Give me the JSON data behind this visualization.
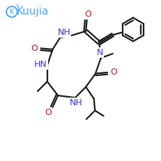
{
  "bg_color": "#ffffff",
  "logo_color": "#4da6e8",
  "bond_color": "#1a1a1a",
  "nh_color": "#3333cc",
  "n_color": "#3333cc",
  "o_color": "#cc1111",
  "lw": 1.6,
  "lw_ring": 1.6
}
